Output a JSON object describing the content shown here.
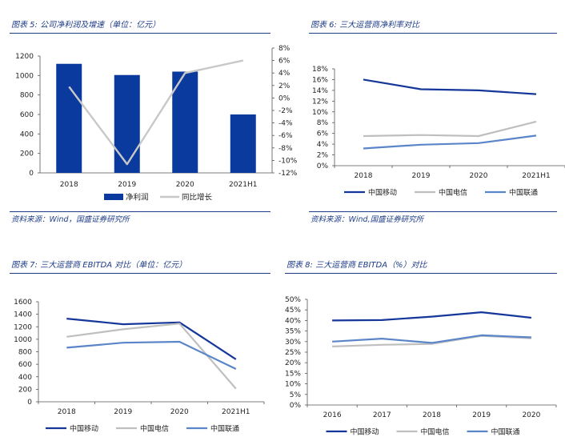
{
  "captions": {
    "fig5": "图表 5:  公司净利润及增速（单位：亿元）",
    "fig6": "图表 6:  三大运营商净利率对比",
    "fig7": "图表 7:  三大运营商 EBITDA 对比（单位：亿元）",
    "fig8": "图表 8:  三大运营商 EBITDA（%）对比"
  },
  "sources": {
    "fig5": "资料来源：Wind，国盛证券研究所",
    "fig6": "资料来源：Wind,国盛证券研究所"
  },
  "colors": {
    "caption": "#1f3c88",
    "mobile": "#15379a",
    "telecom": "#bfbfbf",
    "unicom": "#5a86c9",
    "bar": "#0b3a9e",
    "growth_line": "#c8c8c8"
  },
  "chart_data": [
    {
      "id": "fig5",
      "type": "bar+line",
      "categories": [
        "2018",
        "2019",
        "2020",
        "2021H1"
      ],
      "series": [
        {
          "name": "净利润",
          "kind": "bar",
          "axis": "left",
          "values": [
            1120,
            1005,
            1040,
            600
          ]
        },
        {
          "name": "同比增长",
          "kind": "line",
          "axis": "right",
          "values": [
            1.8,
            -10.6,
            4.0,
            6.0
          ]
        }
      ],
      "ylim": [
        0,
        1200
      ],
      "yticks": [
        "0",
        "200",
        "400",
        "600",
        "800",
        "1000",
        "1200"
      ],
      "y2lim": [
        -12,
        8
      ],
      "y2ticks": [
        "-12%",
        "-10%",
        "-8%",
        "-6%",
        "-4%",
        "-2%",
        "0%",
        "2%",
        "4%",
        "6%",
        "8%"
      ],
      "legend": "bottom"
    },
    {
      "id": "fig6",
      "type": "line",
      "categories": [
        "2018",
        "2019",
        "2020",
        "2021H1"
      ],
      "series": [
        {
          "name": "中国移动",
          "values": [
            16.0,
            14.2,
            14.0,
            13.3
          ]
        },
        {
          "name": "中国电信",
          "values": [
            5.5,
            5.7,
            5.5,
            8.2
          ]
        },
        {
          "name": "中国联通",
          "values": [
            3.2,
            3.9,
            4.2,
            5.6
          ]
        }
      ],
      "ylim": [
        0,
        18
      ],
      "yticks": [
        "0%",
        "2%",
        "4%",
        "6%",
        "8%",
        "10%",
        "12%",
        "14%",
        "16%",
        "18%"
      ],
      "legend": "bottom"
    },
    {
      "id": "fig7",
      "type": "line",
      "categories": [
        "2018",
        "2019",
        "2020",
        "2021H1"
      ],
      "series": [
        {
          "name": "中国移动",
          "values": [
            1330,
            1240,
            1270,
            680
          ]
        },
        {
          "name": "中国电信",
          "values": [
            1040,
            1160,
            1250,
            210
          ]
        },
        {
          "name": "中国联通",
          "values": [
            865,
            945,
            960,
            525
          ]
        }
      ],
      "ylim": [
        0,
        1600
      ],
      "yticks": [
        "0",
        "200",
        "400",
        "600",
        "800",
        "1000",
        "1200",
        "1400",
        "1600"
      ],
      "legend": "bottom"
    },
    {
      "id": "fig8",
      "type": "line",
      "categories": [
        "2016",
        "2017",
        "2018",
        "2019",
        "2020"
      ],
      "series": [
        {
          "name": "中国移动",
          "values": [
            40.0,
            40.2,
            41.8,
            43.9,
            41.3
          ]
        },
        {
          "name": "中国电信",
          "values": [
            27.7,
            28.5,
            28.9,
            32.7,
            31.6
          ]
        },
        {
          "name": "中国联通",
          "values": [
            30.0,
            31.4,
            29.4,
            33.0,
            32.0
          ]
        }
      ],
      "ylim": [
        0,
        50
      ],
      "yticks": [
        "0%",
        "5%",
        "10%",
        "15%",
        "20%",
        "25%",
        "30%",
        "35%",
        "40%",
        "45%",
        "50%"
      ],
      "legend": "bottom"
    }
  ]
}
